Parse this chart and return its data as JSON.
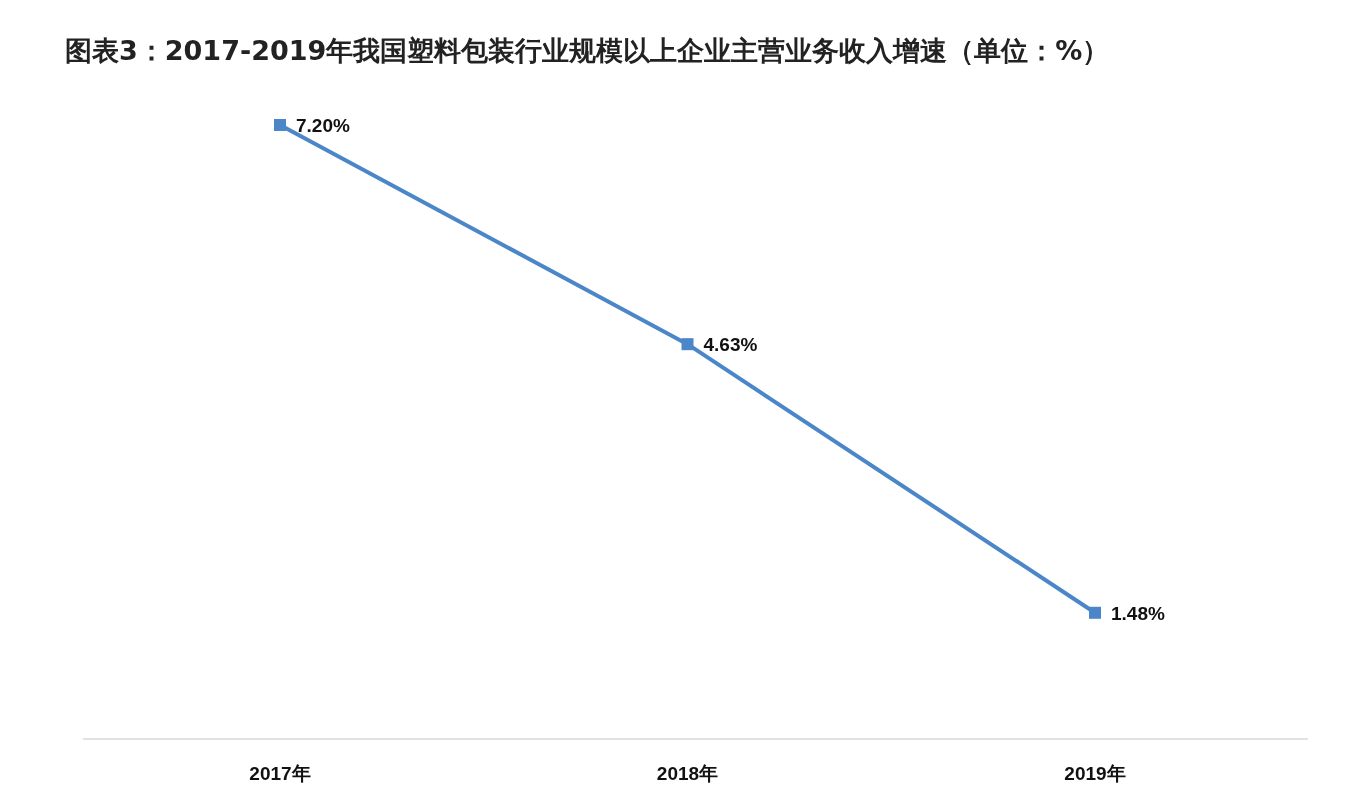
{
  "chart_data": {
    "type": "line",
    "title": "图表3：2017-2019年我国塑料包装行业规模以上企业主营业务收入增速（单位：%）",
    "categories": [
      "2017年",
      "2018年",
      "2019年"
    ],
    "series": [
      {
        "color": "#4a86c8",
        "values": [
          7.2,
          4.63,
          1.48
        ],
        "value_labels": [
          "7.20%",
          "4.63%",
          "1.48%"
        ]
      }
    ],
    "marker": "square"
  }
}
